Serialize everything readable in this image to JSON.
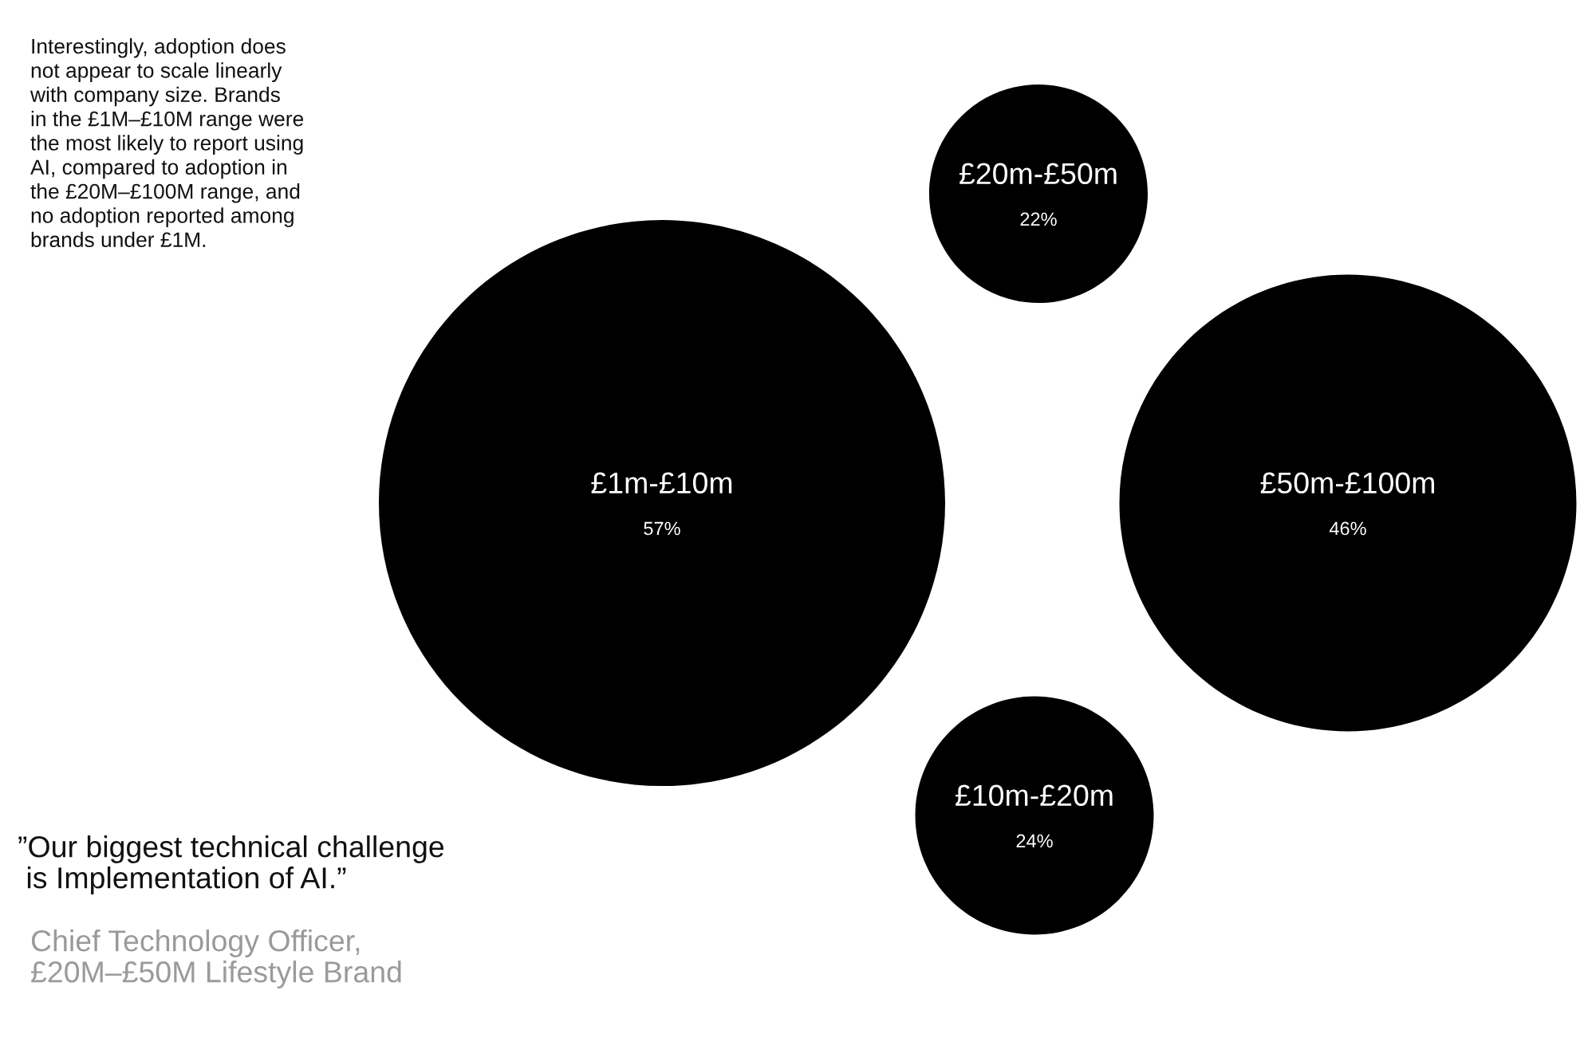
{
  "chart_data": {
    "type": "other",
    "categories": [
      "£20m-£50m",
      "£1m-£10m",
      "£50m-£100m",
      "£10m-£20m"
    ],
    "values": [
      22,
      57,
      46,
      24
    ],
    "value_labels": [
      "22%",
      "57%",
      "46%",
      "24%"
    ],
    "color": "#000000",
    "annotations": [
      "Interestingly, adoption does\nnot appear to scale linearly\nwith company size. Brands\nin the £1M–£10M range were\nthe most likely to report using\nAI, compared to adoption in\nthe £20M–£100M range, and\nno adoption reported among\nbrands under £1M.",
      "”Our biggest technical challenge\n is Implementation of AI.”",
      "Chief Technology Officer,\n£20M–£50M Lifestyle Brand"
    ]
  }
}
